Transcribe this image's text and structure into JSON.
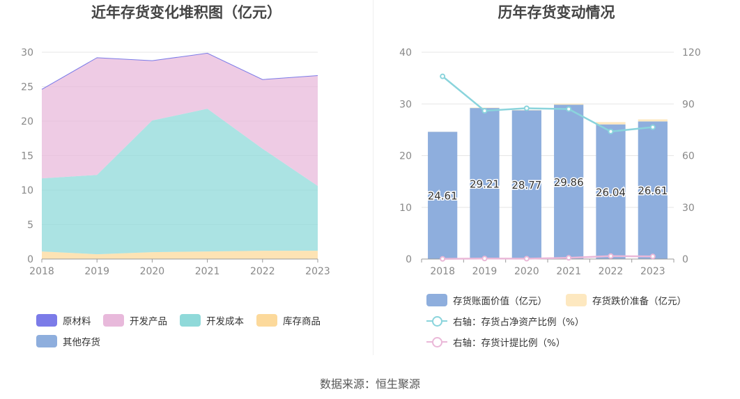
{
  "left_chart": {
    "title": "近年存货变化堆积图（亿元）",
    "legend": [
      "原材料",
      "开发产品",
      "开发成本",
      "库存商品",
      "其他存货"
    ]
  },
  "right_chart": {
    "title": "历年存货变动情况",
    "legend": [
      "存货账面价值（亿元）",
      "存货跌价准备（亿元）",
      "右轴：存货占净资产比例（%）",
      "右轴：存货计提比例（%）"
    ]
  },
  "source": "数据来源：恒生聚源",
  "colors": {
    "raw_materials": "#7b7be8",
    "dev_products": "#e8b9db",
    "dev_cost": "#8fd9d9",
    "inventory_goods": "#fcd99b",
    "other": "#8eaedd",
    "book_value": "#8eaedd",
    "impairment": "#fde8c0",
    "ratio_net_assets": "#8ad4dc",
    "provision_ratio": "#eab8d8"
  },
  "chart_data": [
    {
      "type": "area",
      "title": "近年存货变化堆积图（亿元）",
      "x": [
        "2018",
        "2019",
        "2020",
        "2021",
        "2022",
        "2023"
      ],
      "ylim": [
        0,
        30
      ],
      "yticks": [
        0,
        5,
        10,
        15,
        20,
        25,
        30
      ],
      "stacked": true,
      "series": [
        {
          "name": "库存商品",
          "values": [
            1.1,
            0.7,
            1.0,
            1.1,
            1.2,
            1.2
          ]
        },
        {
          "name": "开发成本",
          "values": [
            10.6,
            11.5,
            19.1,
            20.7,
            14.8,
            9.4
          ]
        },
        {
          "name": "开发产品",
          "values": [
            12.91,
            17.01,
            8.67,
            8.06,
            10.04,
            16.01
          ]
        },
        {
          "name": "原材料",
          "values": [
            0,
            0,
            0,
            0,
            0,
            0
          ]
        },
        {
          "name": "其他存货",
          "values": [
            0,
            0,
            0,
            0,
            0,
            0
          ]
        }
      ],
      "grid": true,
      "legend_position": "bottom"
    },
    {
      "type": "bar",
      "title": "历年存货变动情况",
      "categories": [
        "2018",
        "2019",
        "2020",
        "2021",
        "2022",
        "2023"
      ],
      "ylim": [
        0,
        40
      ],
      "yticks": [
        0,
        10,
        20,
        30,
        40
      ],
      "y2lim": [
        0,
        120
      ],
      "y2ticks": [
        0,
        30,
        60,
        90,
        120
      ],
      "series": [
        {
          "name": "存货账面价值（亿元）",
          "values": [
            24.61,
            29.21,
            28.77,
            29.86,
            26.04,
            26.61
          ],
          "labels": [
            "24.61",
            "29.21",
            "28.77",
            "29.86",
            "26.04",
            "26.61"
          ]
        },
        {
          "name": "存货跌价准备（亿元）",
          "values": [
            0.02,
            0.08,
            0.06,
            0.2,
            0.45,
            0.4
          ]
        },
        {
          "name": "右轴：存货占净资产比例（%）",
          "type": "line",
          "axis": "right",
          "values": [
            106,
            86,
            87.5,
            87,
            74,
            76.5
          ]
        },
        {
          "name": "右轴：存货计提比例（%）",
          "type": "line",
          "axis": "right",
          "values": [
            0.1,
            0.3,
            0.2,
            0.7,
            1.7,
            1.5
          ]
        }
      ],
      "grid": true,
      "legend_position": "bottom"
    }
  ]
}
